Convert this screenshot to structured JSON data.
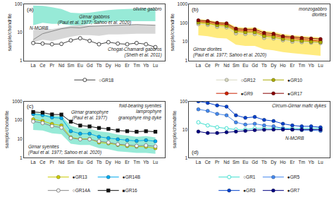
{
  "chart_data": [
    {
      "type": "line",
      "title": "(a)",
      "subtitle": "olivine gabbro",
      "ylabel": "sample/chondrite",
      "categories": [
        "La",
        "Ce",
        "Pr",
        "Nd",
        "Sm",
        "Eu",
        "Gd",
        "Tb",
        "Dy",
        "Ho",
        "Er",
        "Tm",
        "Yb",
        "Lu"
      ],
      "log": "y",
      "ylim": [
        1,
        100
      ],
      "yticks": [
        1,
        10,
        100
      ],
      "grid": false,
      "legend": "bottom",
      "series": [
        {
          "type": "band",
          "color": "#30D5B0",
          "lower": [
            18,
            22,
            20,
            20,
            18,
            18,
            20,
            22,
            24,
            25,
            25,
            26,
            26,
            25
          ],
          "upper": [
            90,
            88,
            78,
            68,
            50,
            48,
            50,
            56,
            62,
            66,
            68,
            70,
            72,
            70
          ]
        },
        {
          "type": "band",
          "color": "#B0B0B0",
          "lower": [
            4.5,
            5.5,
            5.0,
            6.0,
            7.0,
            8.0,
            8.0,
            7.5,
            8.5,
            8.5,
            8.8,
            9.0,
            9.0,
            9.0
          ],
          "upper": [
            12.0,
            14.0,
            13.0,
            15.0,
            17.0,
            18.5,
            18.0,
            17.0,
            18.0,
            18.0,
            18.5,
            19.0,
            18.5,
            18.0
          ]
        },
        {
          "type": "line",
          "color": "#888888",
          "values": [
            5.5,
            9.0,
            11.0,
            13.5,
            15.0,
            14.5,
            16.5,
            17.0,
            17.5,
            18.0,
            18.5,
            19.0,
            18.5,
            18.0
          ]
        },
        {
          "type": "line",
          "name": "○GR18",
          "color": "#444444",
          "marker": "circle-open",
          "values": [
            4.2,
            4.0,
            3.8,
            3.9,
            5.2,
            6.2,
            5.0,
            3.8,
            4.5,
            4.0,
            3.8,
            4.2,
            3.8,
            3.0
          ]
        }
      ],
      "annotations": [
        {
          "text": "Girnar gabbros\n(Paul et al. 1977; Sahoo et al. 2020)"
        },
        {
          "text": "N-MORB"
        },
        {
          "text": "Chogat-Chamardi gabbros\n(Sheth et al. 2011)"
        }
      ]
    },
    {
      "type": "line",
      "title": "(b)",
      "subtitle": "monzogabbro\ndiorites",
      "ylabel": "sample/chondrite",
      "categories": [
        "La",
        "Ce",
        "Pr",
        "Nd",
        "Sm",
        "Eu",
        "Gd",
        "Tb",
        "Dy",
        "Ho",
        "Er",
        "Tm",
        "Yb",
        "Lu"
      ],
      "log": "y",
      "ylim": [
        1,
        1000
      ],
      "yticks": [
        1,
        10,
        100,
        1000
      ],
      "grid": false,
      "legend": "bottom",
      "series": [
        {
          "type": "band",
          "color": "#FFD700",
          "lower": [
            22,
            20,
            16,
            15,
            7,
            6,
            6,
            4,
            3.5,
            2.8,
            2.5,
            2.2,
            2.0,
            1.8
          ],
          "upper": [
            160,
            148,
            118,
            110,
            62,
            56,
            58,
            38,
            34,
            26,
            22,
            20,
            18,
            17
          ]
        },
        {
          "type": "line",
          "name": "○GR12",
          "color": "#D8D8C0",
          "marker": "circle",
          "values": [
            88,
            80,
            62,
            58,
            28,
            26,
            26,
            16,
            15,
            12,
            10,
            9.5,
            9,
            8.5
          ]
        },
        {
          "type": "line",
          "name": "●GR9",
          "color": "#CC2200",
          "marker": "circle",
          "values": [
            120,
            110,
            88,
            82,
            42,
            38,
            38,
            24,
            22,
            17,
            15,
            13,
            12,
            11
          ]
        },
        {
          "type": "line",
          "name": "●GR10",
          "color": "#AAAA00",
          "marker": "circle",
          "values": [
            105,
            95,
            76,
            70,
            36,
            32,
            32,
            20,
            18,
            14,
            12,
            11,
            10,
            9.5
          ]
        },
        {
          "type": "line",
          "name": "●GR17",
          "color": "#880000",
          "marker": "circle",
          "values": [
            140,
            128,
            102,
            96,
            50,
            46,
            46,
            30,
            27,
            20,
            18,
            16,
            15,
            14
          ]
        }
      ],
      "annotations": [
        {
          "text": "Girnar diorites\n(Paul et al. 1977; Sahoo et al. 2020)"
        }
      ]
    },
    {
      "type": "line",
      "title": "(c)",
      "subtitle": "foid-bearing syenites\nlamprophyre\ngranophyre ring dyke",
      "ylabel": "sample/chondrite",
      "categories": [
        "La",
        "Ce",
        "Pr",
        "Nd",
        "Sm",
        "Eu",
        "Gd",
        "Tb",
        "Dy",
        "Ho",
        "Er",
        "Tm",
        "Yb",
        "Lu"
      ],
      "log": "y",
      "ylim": [
        1,
        1000
      ],
      "yticks": [
        1,
        10,
        100,
        1000
      ],
      "grid": false,
      "legend": "bottom",
      "series": [
        {
          "type": "band",
          "color": "#30D5B0",
          "lower": [
            30,
            28,
            20,
            18,
            5.5,
            4.8,
            4.8,
            3.2,
            2.8,
            2.2,
            2.0,
            1.8,
            1.8,
            1.6
          ],
          "upper": [
            240,
            220,
            175,
            165,
            50,
            36,
            34,
            25,
            22,
            17,
            15,
            13,
            14,
            12
          ]
        },
        {
          "type": "line",
          "name": "●GR13",
          "color": "#CCCC00",
          "marker": "circle",
          "values": [
            110,
            90,
            62,
            52,
            12,
            10,
            10,
            6.5,
            5.8,
            4.8,
            4.2,
            3.9,
            3.8,
            3.2
          ]
        },
        {
          "type": "line",
          "name": "○GR14A",
          "color": "#888888",
          "marker": "circle-open",
          "values": [
            85,
            70,
            48,
            40,
            11,
            9.5,
            9.5,
            7.5,
            6.5,
            5.2,
            4.8,
            4.3,
            4.5,
            4.0
          ]
        },
        {
          "type": "line",
          "name": "●GR14B",
          "color": "#00AAEE",
          "marker": "circle",
          "values": [
            210,
            185,
            138,
            128,
            26,
            19,
            19,
            13,
            11,
            9.5,
            8.5,
            7.8,
            8.5,
            7.5
          ]
        },
        {
          "type": "line",
          "name": "■GR16",
          "color": "#111111",
          "marker": "square",
          "values": [
            270,
            252,
            200,
            198,
            82,
            52,
            46,
            38,
            34,
            28,
            26,
            24,
            26,
            24
          ]
        }
      ],
      "annotations": [
        {
          "text": "Girnar granophyre\n(Paul et al. 1977)"
        },
        {
          "text": "Girnar syenites\n(Paul et al. 1977; Sahoo et al. 2020)"
        }
      ]
    },
    {
      "type": "line",
      "title": "(d)",
      "subtitle": "Circum-Girnar mafic dykes",
      "ylabel": "sample/chondrite",
      "categories": [
        "La",
        "Ce",
        "Pr",
        "Nd",
        "Sm",
        "Eu",
        "Gd",
        "Tb",
        "Dy",
        "Ho",
        "Er",
        "Tm",
        "Yb",
        "Lu"
      ],
      "log": "y",
      "ylim": [
        1,
        100
      ],
      "yticks": [
        1,
        10,
        100
      ],
      "grid": false,
      "legend": "bottom",
      "series": [
        {
          "type": "line",
          "name": "○GR1",
          "color": "#40E0D0",
          "marker": "circle-open",
          "values": [
            18,
            14,
            12,
            11,
            10,
            10,
            11,
            11,
            11,
            11,
            11,
            11,
            11,
            11
          ]
        },
        {
          "type": "line",
          "name": "●GR3",
          "color": "#0040CC",
          "marker": "circle",
          "values": [
            100,
            88,
            72,
            65,
            32,
            26,
            28,
            22,
            20,
            16,
            14,
            13,
            13,
            12
          ]
        },
        {
          "type": "line",
          "name": "●GR5",
          "color": "#4488EE",
          "marker": "circle",
          "values": [
            52,
            46,
            36,
            32,
            18,
            15,
            16,
            14,
            13,
            11,
            10,
            9.5,
            9.5,
            9
          ]
        },
        {
          "type": "line",
          "name": "●GR7",
          "color": "#000080",
          "marker": "circle",
          "values": [
            8.5,
            7.5,
            7.5,
            8,
            8.5,
            9,
            9.5,
            9.8,
            10,
            10,
            10,
            10,
            10,
            10
          ]
        }
      ],
      "annotations": [
        {
          "text": "N-MORB"
        }
      ]
    }
  ]
}
